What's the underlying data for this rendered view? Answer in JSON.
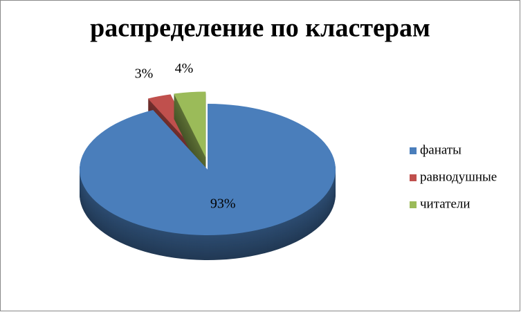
{
  "chart_data": {
    "type": "pie3d",
    "title": "распределение по кластерам",
    "categories": [
      "фанаты",
      "равнодушные",
      "читатели"
    ],
    "values": [
      93,
      3,
      4
    ],
    "value_labels": [
      "93%",
      "3%",
      "4%"
    ],
    "colors": [
      "#4a7ebb",
      "#c0504d",
      "#9bbb59"
    ],
    "legend": "right"
  }
}
